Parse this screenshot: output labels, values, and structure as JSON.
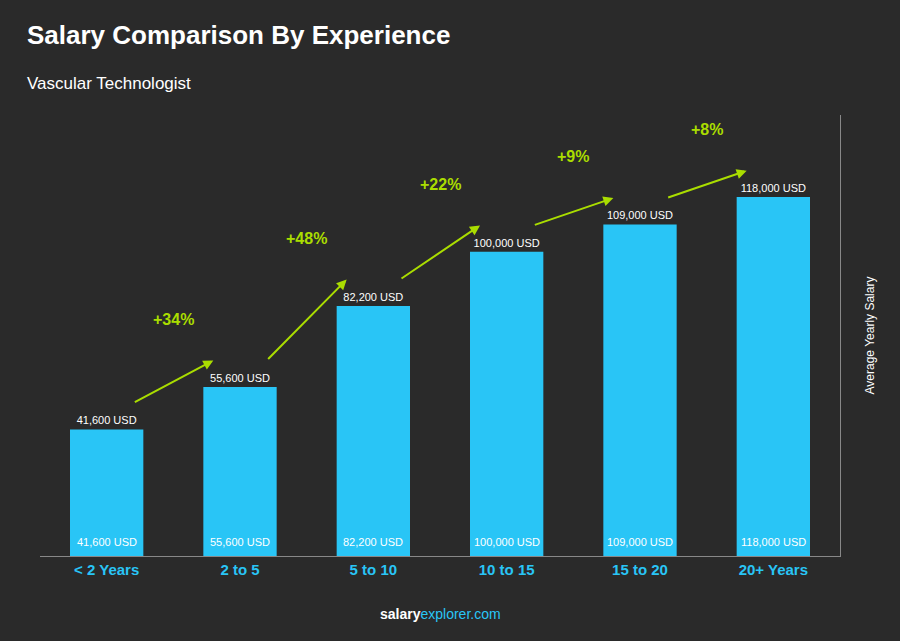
{
  "chart_data": {
    "type": "bar",
    "title": "Salary Comparison By Experience",
    "subtitle": "Vascular Technologist",
    "ylabel": "Average Yearly Salary",
    "categories": [
      "< 2 Years",
      "2 to 5",
      "5 to 10",
      "10 to 15",
      "15 to 20",
      "20+ Years"
    ],
    "values": [
      41600,
      55600,
      82200,
      100000,
      109000,
      118000
    ],
    "value_labels": [
      "41,600 USD",
      "55,600 USD",
      "82,200 USD",
      "100,000 USD",
      "109,000 USD",
      "118,000 USD"
    ],
    "data_labels": true,
    "color": "#29c5f6",
    "ylim": [
      0,
      145000
    ],
    "tick_labels": "x",
    "grid": false,
    "annotations": [
      {
        "text": "+34%",
        "color": "#aadd00"
      },
      {
        "text": "+48%",
        "color": "#aadd00"
      },
      {
        "text": "+22%",
        "color": "#aadd00"
      },
      {
        "text": "+9%",
        "color": "#aadd00"
      },
      {
        "text": "+8%",
        "color": "#aadd00"
      }
    ],
    "footer": [
      "salary",
      "explorer.com"
    ]
  }
}
